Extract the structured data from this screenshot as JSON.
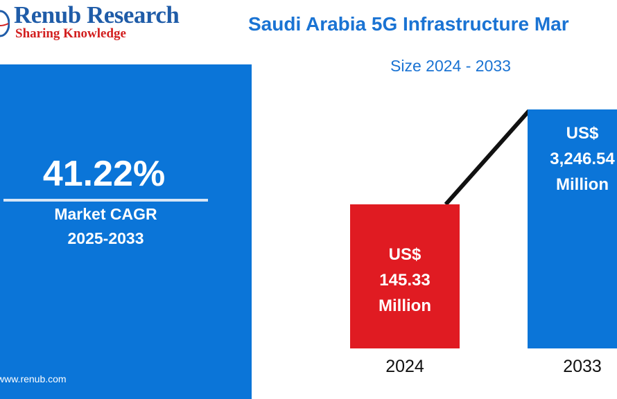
{
  "brand": {
    "name": "Renub Research",
    "tagline": "Sharing Knowledge",
    "website": "www.renub.com"
  },
  "header": {
    "title": "Saudi Arabia 5G Infrastructure Mar",
    "subtitle": "Size 2024 - 2033"
  },
  "cagr": {
    "value": "41.22%",
    "label": "Market CAGR",
    "period": "2025-2033"
  },
  "colors": {
    "primary_blue": "#0b75d8",
    "bar_red": "#e01b22",
    "title_blue": "#1a73d3",
    "logo_blue": "#1f5ca8",
    "logo_red": "#d21f1f"
  },
  "chart_data": {
    "type": "bar",
    "title": "Saudi Arabia 5G Infrastructure Mar",
    "subtitle": "Size 2024 - 2033",
    "categories": [
      "2024",
      "2033"
    ],
    "values": [
      145.33,
      3246.54
    ],
    "unit": "US$ Million",
    "bar_colors": [
      "#e01b22",
      "#0b75d8"
    ],
    "data_labels": [
      [
        "US$",
        "145.33",
        "Million"
      ],
      [
        "US$",
        "3,246.54",
        "Million"
      ]
    ],
    "trend_line": true,
    "grid": false
  }
}
